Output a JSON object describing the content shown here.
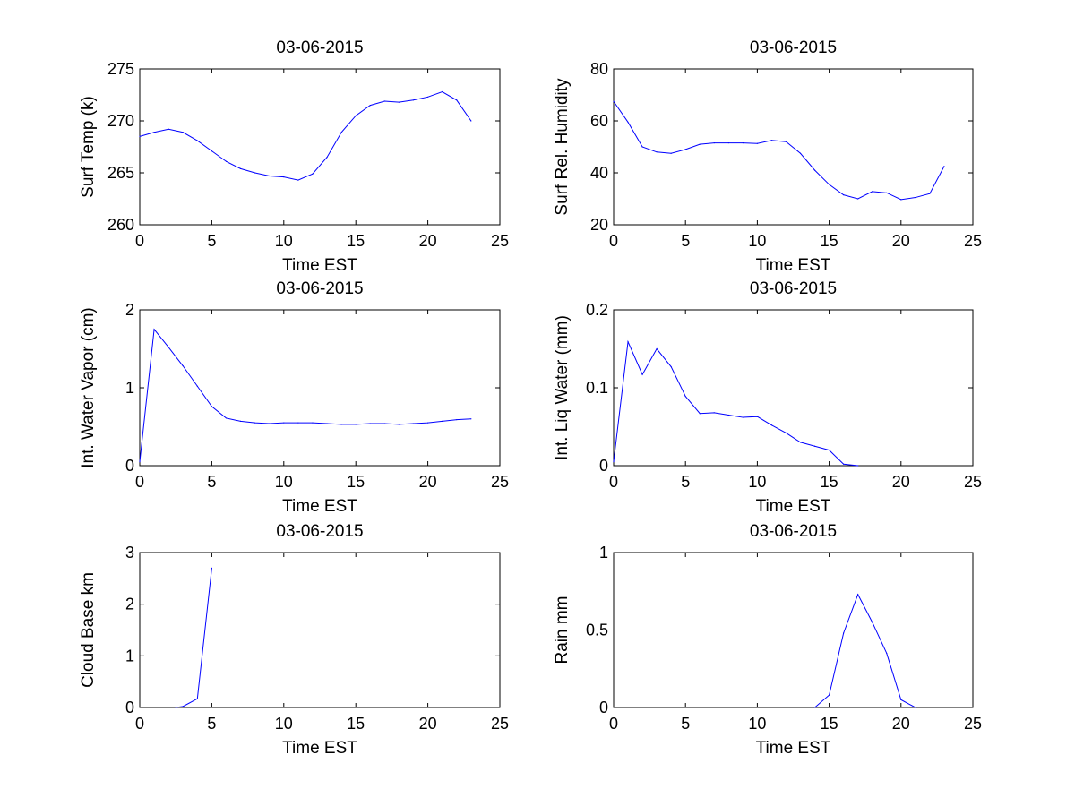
{
  "chart_data": [
    {
      "type": "line",
      "title": "03-06-2015",
      "xlabel": "Time EST",
      "ylabel": "Surf Temp (k)",
      "xlim": [
        0,
        25
      ],
      "ylim": [
        260,
        275
      ],
      "xticks": [
        0,
        5,
        10,
        15,
        20,
        25
      ],
      "yticks": [
        260,
        265,
        270,
        275
      ],
      "color": "#0000ff",
      "series": [
        {
          "name": "Surf Temp",
          "x": [
            0,
            1,
            2,
            3,
            4,
            5,
            6,
            7,
            8,
            9,
            10,
            11,
            12,
            13,
            14,
            15,
            16,
            17,
            18,
            19,
            20,
            21,
            22,
            23
          ],
          "y": [
            268.5,
            268.9,
            269.2,
            268.9,
            268.1,
            267.1,
            266.1,
            265.4,
            265.0,
            264.7,
            264.6,
            264.3,
            264.9,
            266.5,
            268.9,
            270.5,
            271.5,
            271.9,
            271.8,
            272.0,
            272.3,
            272.8,
            272.0,
            270.0
          ]
        }
      ]
    },
    {
      "type": "line",
      "title": "03-06-2015",
      "xlabel": "Time EST",
      "ylabel": "Surf Rel. Humidity",
      "xlim": [
        0,
        25
      ],
      "ylim": [
        20,
        80
      ],
      "xticks": [
        0,
        5,
        10,
        15,
        20,
        25
      ],
      "yticks": [
        20,
        40,
        60,
        80
      ],
      "color": "#0000ff",
      "series": [
        {
          "name": "Surf Rel. Humidity",
          "x": [
            0,
            1,
            2,
            3,
            4,
            5,
            6,
            7,
            8,
            9,
            10,
            11,
            12,
            13,
            14,
            15,
            16,
            17,
            18,
            19,
            20,
            21,
            22,
            23
          ],
          "y": [
            67.5,
            59.5,
            50.0,
            48.0,
            47.5,
            49.0,
            51.0,
            51.5,
            51.5,
            51.5,
            51.3,
            52.5,
            52.0,
            47.5,
            41.0,
            35.5,
            31.5,
            30.0,
            32.8,
            32.3,
            29.7,
            30.5,
            32.0,
            42.5
          ]
        }
      ]
    },
    {
      "type": "line",
      "title": "03-06-2015",
      "xlabel": "Time EST",
      "ylabel": "Int. Water Vapor (cm)",
      "xlim": [
        0,
        25
      ],
      "ylim": [
        0,
        2
      ],
      "xticks": [
        0,
        5,
        10,
        15,
        20,
        25
      ],
      "yticks": [
        0,
        1,
        2
      ],
      "color": "#0000ff",
      "series": [
        {
          "name": "Int. Water Vapor",
          "x": [
            0,
            1,
            2,
            3,
            4,
            5,
            6,
            7,
            8,
            9,
            10,
            11,
            12,
            13,
            14,
            15,
            16,
            17,
            18,
            19,
            20,
            21,
            22,
            23
          ],
          "y": [
            0.05,
            1.75,
            1.52,
            1.28,
            1.02,
            0.76,
            0.61,
            0.57,
            0.55,
            0.54,
            0.55,
            0.55,
            0.55,
            0.54,
            0.53,
            0.53,
            0.54,
            0.54,
            0.53,
            0.54,
            0.55,
            0.57,
            0.59,
            0.6
          ]
        }
      ]
    },
    {
      "type": "line",
      "title": "03-06-2015",
      "xlabel": "Time EST",
      "ylabel": "Int. Liq Water (mm)",
      "xlim": [
        0,
        25
      ],
      "ylim": [
        0,
        0.2
      ],
      "xticks": [
        0,
        5,
        10,
        15,
        20,
        25
      ],
      "yticks": [
        0,
        0.1,
        0.2
      ],
      "color": "#0000ff",
      "series": [
        {
          "name": "Int. Liq Water",
          "x": [
            0,
            1,
            2,
            3,
            4,
            5,
            6,
            7,
            8,
            9,
            10,
            11,
            12,
            13,
            14,
            15,
            16,
            17
          ],
          "y": [
            0.005,
            0.159,
            0.117,
            0.15,
            0.127,
            0.089,
            0.067,
            0.068,
            0.065,
            0.062,
            0.063,
            0.052,
            0.042,
            0.03,
            0.025,
            0.02,
            0.002,
            0.0
          ]
        }
      ]
    },
    {
      "type": "line",
      "title": "03-06-2015",
      "xlabel": "Time EST",
      "ylabel": "Cloud Base km",
      "xlim": [
        0,
        25
      ],
      "ylim": [
        0,
        3
      ],
      "xticks": [
        0,
        5,
        10,
        15,
        20,
        25
      ],
      "yticks": [
        0,
        1,
        2,
        3
      ],
      "color": "#0000ff",
      "series": [
        {
          "name": "Cloud Base",
          "x": [
            2.5,
            3,
            4,
            5
          ],
          "y": [
            0.0,
            0.02,
            0.17,
            2.7
          ]
        }
      ]
    },
    {
      "type": "line",
      "title": "03-06-2015",
      "xlabel": "Time EST",
      "ylabel": "Rain mm",
      "xlim": [
        0,
        25
      ],
      "ylim": [
        0,
        1
      ],
      "xticks": [
        0,
        5,
        10,
        15,
        20,
        25
      ],
      "yticks": [
        0,
        0.5,
        1
      ],
      "color": "#0000ff",
      "series": [
        {
          "name": "Rain",
          "x": [
            14,
            15,
            16,
            17,
            18,
            19,
            20,
            21
          ],
          "y": [
            0.0,
            0.08,
            0.48,
            0.73,
            0.55,
            0.35,
            0.05,
            0.0
          ]
        }
      ]
    }
  ]
}
